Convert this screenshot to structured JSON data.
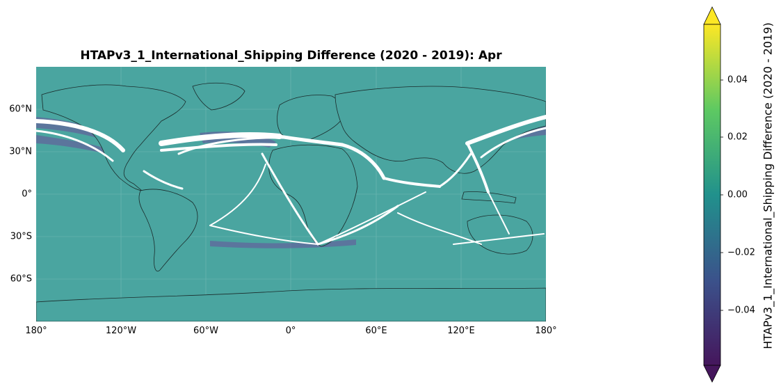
{
  "title": "HTAPv3_1_International_Shipping Difference (2020 - 2019): Apr",
  "map": {
    "projection": "PlateCarree",
    "background_color": "#4aa5a0",
    "route_color": "#ffffff",
    "low_color": "#6a4f9a",
    "lat_ticks": [
      "60°N",
      "30°N",
      "0°",
      "30°S",
      "60°S"
    ],
    "lon_ticks": [
      "180°",
      "120°W",
      "60°W",
      "0°",
      "60°E",
      "120°E",
      "180°"
    ]
  },
  "colorbar": {
    "label": "HTAPv3_1_International_Shipping Difference (2020 - 2019)",
    "ticks": [
      "0.04",
      "0.02",
      "0.00",
      "−0.02",
      "−0.04"
    ],
    "range": [
      -0.06,
      0.06
    ],
    "extend": "both",
    "colormap": "viridis",
    "colors": [
      "#45165c",
      "#3b528b",
      "#21918c",
      "#5ec962",
      "#fde725"
    ]
  },
  "chart_data": {
    "type": "heatmap",
    "title": "HTAPv3_1_International_Shipping Difference (2020 - 2019): Apr",
    "colorbar_label": "HTAPv3_1_International_Shipping Difference (2020 - 2019)",
    "zlim": [
      -0.06,
      0.06
    ],
    "zticks": [
      0.04,
      0.02,
      0.0,
      -0.02,
      -0.04
    ],
    "xlim": [
      -180,
      180
    ],
    "ylim": [
      -90,
      90
    ],
    "xticks": [
      -180,
      -120,
      -60,
      0,
      60,
      120,
      180
    ],
    "yticks": [
      60,
      30,
      0,
      -30,
      -60
    ],
    "grid": true,
    "background_value": 0.0
  }
}
